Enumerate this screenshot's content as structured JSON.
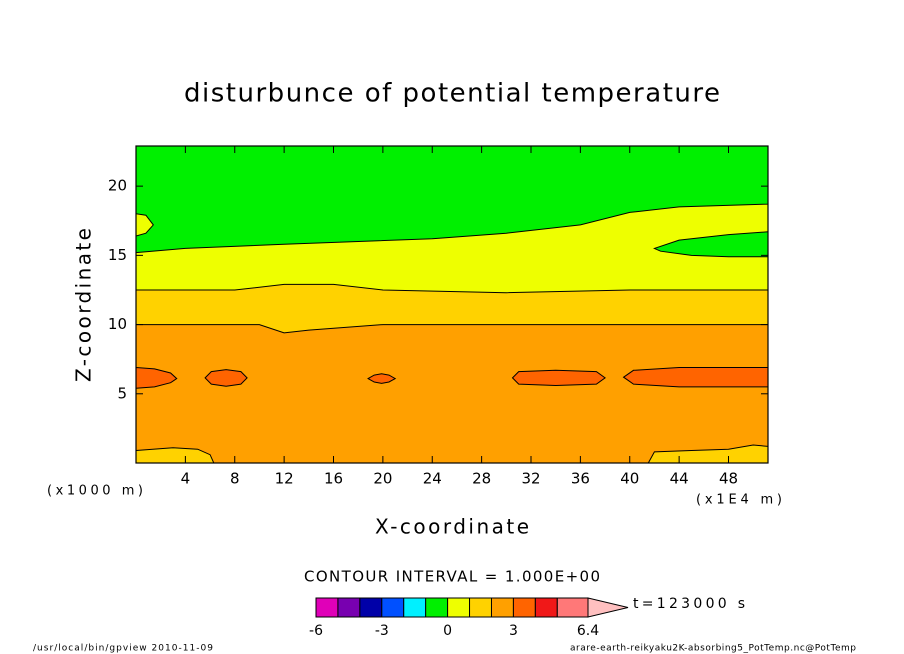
{
  "chart_data": {
    "type": "filled_contour",
    "title": "disturbunce of potential temperature",
    "x_label": "X-coordinate",
    "y_label": "Z-coordinate",
    "x_unit_left": "(x1000 m)",
    "x_unit_right": "(x1E4 m)",
    "xlim": [
      0,
      51.2
    ],
    "ylim": [
      0,
      22.9
    ],
    "xticks": [
      4,
      8,
      12,
      16,
      20,
      24,
      28,
      32,
      36,
      40,
      44,
      48
    ],
    "yticks": [
      5,
      10,
      15,
      20
    ],
    "contour_interval": "CONTOUR INTERVAL = 1.000E+00",
    "time_label": "t=123000 s",
    "footer_left": "/usr/local/bin/gpview  2010-11-09",
    "footer_right": "arare-earth-reikyaku2K-absorbing5_PotTemp.nc@PotTemp",
    "colorbar": {
      "levels": [
        -6,
        -5,
        -4,
        -3,
        -2,
        -1,
        0,
        1,
        2,
        3,
        4,
        5,
        6.4
      ],
      "colors": [
        "#e000b8",
        "#7800b0",
        "#0000a8",
        "#0050ff",
        "#00f0ff",
        "#00f000",
        "#eeff00",
        "#ffd200",
        "#ffa000",
        "#ff6400",
        "#f01818",
        "#ff7878"
      ],
      "over_color": "#ffc0c0",
      "ticks": [
        -6,
        -3,
        0,
        3,
        6.4
      ]
    },
    "background_level": 2,
    "regions": [
      {
        "level": 1,
        "x": [
          0,
          10,
          12,
          14,
          20,
          30,
          40,
          51.2,
          51.2,
          0
        ],
        "z": [
          10,
          10,
          9.4,
          9.6,
          10,
          10,
          10,
          10,
          22.9,
          22.9
        ]
      },
      {
        "level": 0,
        "x": [
          0,
          8,
          12,
          16,
          20,
          30,
          40,
          51.2,
          51.2,
          0
        ],
        "z": [
          12.5,
          12.5,
          12.9,
          12.9,
          12.5,
          12.3,
          12.5,
          12.5,
          22.9,
          22.9
        ]
      },
      {
        "level": -1,
        "x": [
          0,
          4,
          12,
          24,
          30,
          36,
          40,
          44,
          51.2,
          51.2,
          0
        ],
        "z": [
          15.2,
          15.5,
          15.8,
          16.2,
          16.6,
          17.2,
          18.1,
          18.5,
          18.7,
          22.9,
          22.9
        ]
      },
      {
        "level": 0,
        "x": [
          0,
          0.8,
          1.4,
          0.8,
          0
        ],
        "z": [
          16.4,
          16.6,
          17.2,
          17.9,
          18.0
        ]
      },
      {
        "level": -1,
        "x": [
          51.2,
          48,
          45,
          42.5,
          42,
          44,
          48,
          51.2
        ],
        "z": [
          14.9,
          14.9,
          15.0,
          15.3,
          15.5,
          16.1,
          16.5,
          16.7
        ]
      },
      {
        "level": 3,
        "x": [
          0,
          1.5,
          2.8,
          3.3,
          2.8,
          1.5,
          0
        ],
        "z": [
          5.4,
          5.5,
          5.8,
          6.1,
          6.5,
          6.8,
          6.9
        ]
      },
      {
        "level": 3,
        "x": [
          5.6,
          6.1,
          7.3,
          8.5,
          9.0,
          8.5,
          7.3,
          6.1
        ],
        "z": [
          6.15,
          6.6,
          6.75,
          6.6,
          6.15,
          5.7,
          5.55,
          5.7
        ]
      },
      {
        "level": 3,
        "x": [
          18.8,
          19.3,
          19.9,
          20.5,
          21,
          20.5,
          19.9,
          19.3
        ],
        "z": [
          6.1,
          6.35,
          6.45,
          6.35,
          6.1,
          5.85,
          5.75,
          5.85
        ]
      },
      {
        "level": 3,
        "x": [
          30.5,
          31,
          34,
          37.3,
          38,
          37.3,
          34,
          31
        ],
        "z": [
          6.15,
          6.6,
          6.7,
          6.6,
          6.15,
          5.7,
          5.6,
          5.7
        ]
      },
      {
        "level": 3,
        "x": [
          39.5,
          40.3,
          44,
          51.2,
          51.2,
          44,
          40.3
        ],
        "z": [
          6.2,
          6.7,
          6.9,
          6.9,
          5.5,
          5.5,
          5.7
        ]
      },
      {
        "level": 1,
        "x": [
          0,
          0,
          3,
          5,
          6,
          6.3
        ],
        "z": [
          0,
          0.9,
          1.1,
          1.0,
          0.6,
          0
        ]
      },
      {
        "level": 1,
        "x": [
          41.5,
          42,
          45,
          48,
          50,
          51.2,
          51.2
        ],
        "z": [
          0,
          0.8,
          0.9,
          1.0,
          1.3,
          1.2,
          0
        ]
      }
    ]
  }
}
